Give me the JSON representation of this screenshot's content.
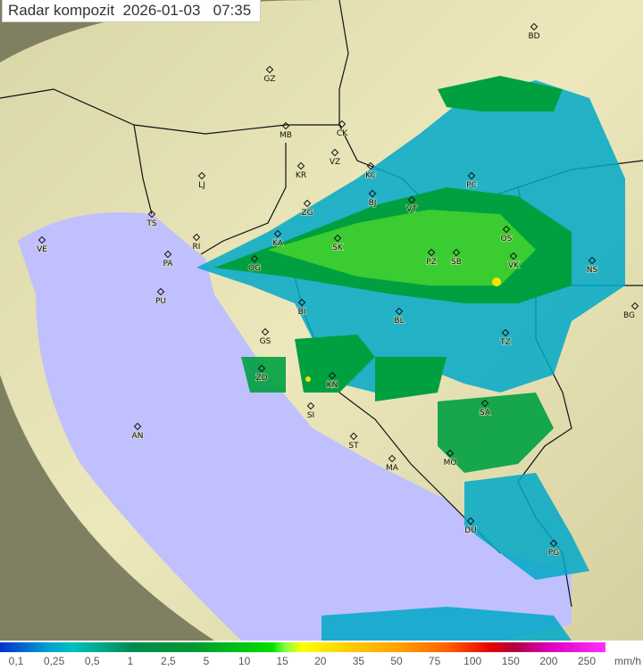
{
  "title": "Radar kompozit  2026-01-03   07:35",
  "cities": [
    "BD",
    "GZ",
    "MB",
    "CK",
    "VZ",
    "KR",
    "KC",
    "PC",
    "LJ",
    "TS",
    "ZG",
    "BJ",
    "VT",
    "VE",
    "KA",
    "SK",
    "OS",
    "RI",
    "PA",
    "OG",
    "PZ",
    "SB",
    "VK",
    "NS",
    "PU",
    "BI",
    "BL",
    "BG",
    "GS",
    "TZ",
    "ZD",
    "KN",
    "SA",
    "AN",
    "SI",
    "ST",
    "MO",
    "MA",
    "DU",
    "PG"
  ],
  "legend": {
    "labels": [
      "0,1",
      "0,25",
      "0,5",
      "1",
      "2,5",
      "5",
      "10",
      "15",
      "20",
      "35",
      "50",
      "75",
      "100",
      "150",
      "200",
      "250"
    ],
    "unit": "mm/h"
  },
  "colors": {
    "sea": "#c0c0ff",
    "land": "#e8e4b0",
    "rain_light": "#00a8c8",
    "rain_mod": "#00a040",
    "rain_heavy": "#40e020",
    "rain_intense": "#ffe000"
  }
}
